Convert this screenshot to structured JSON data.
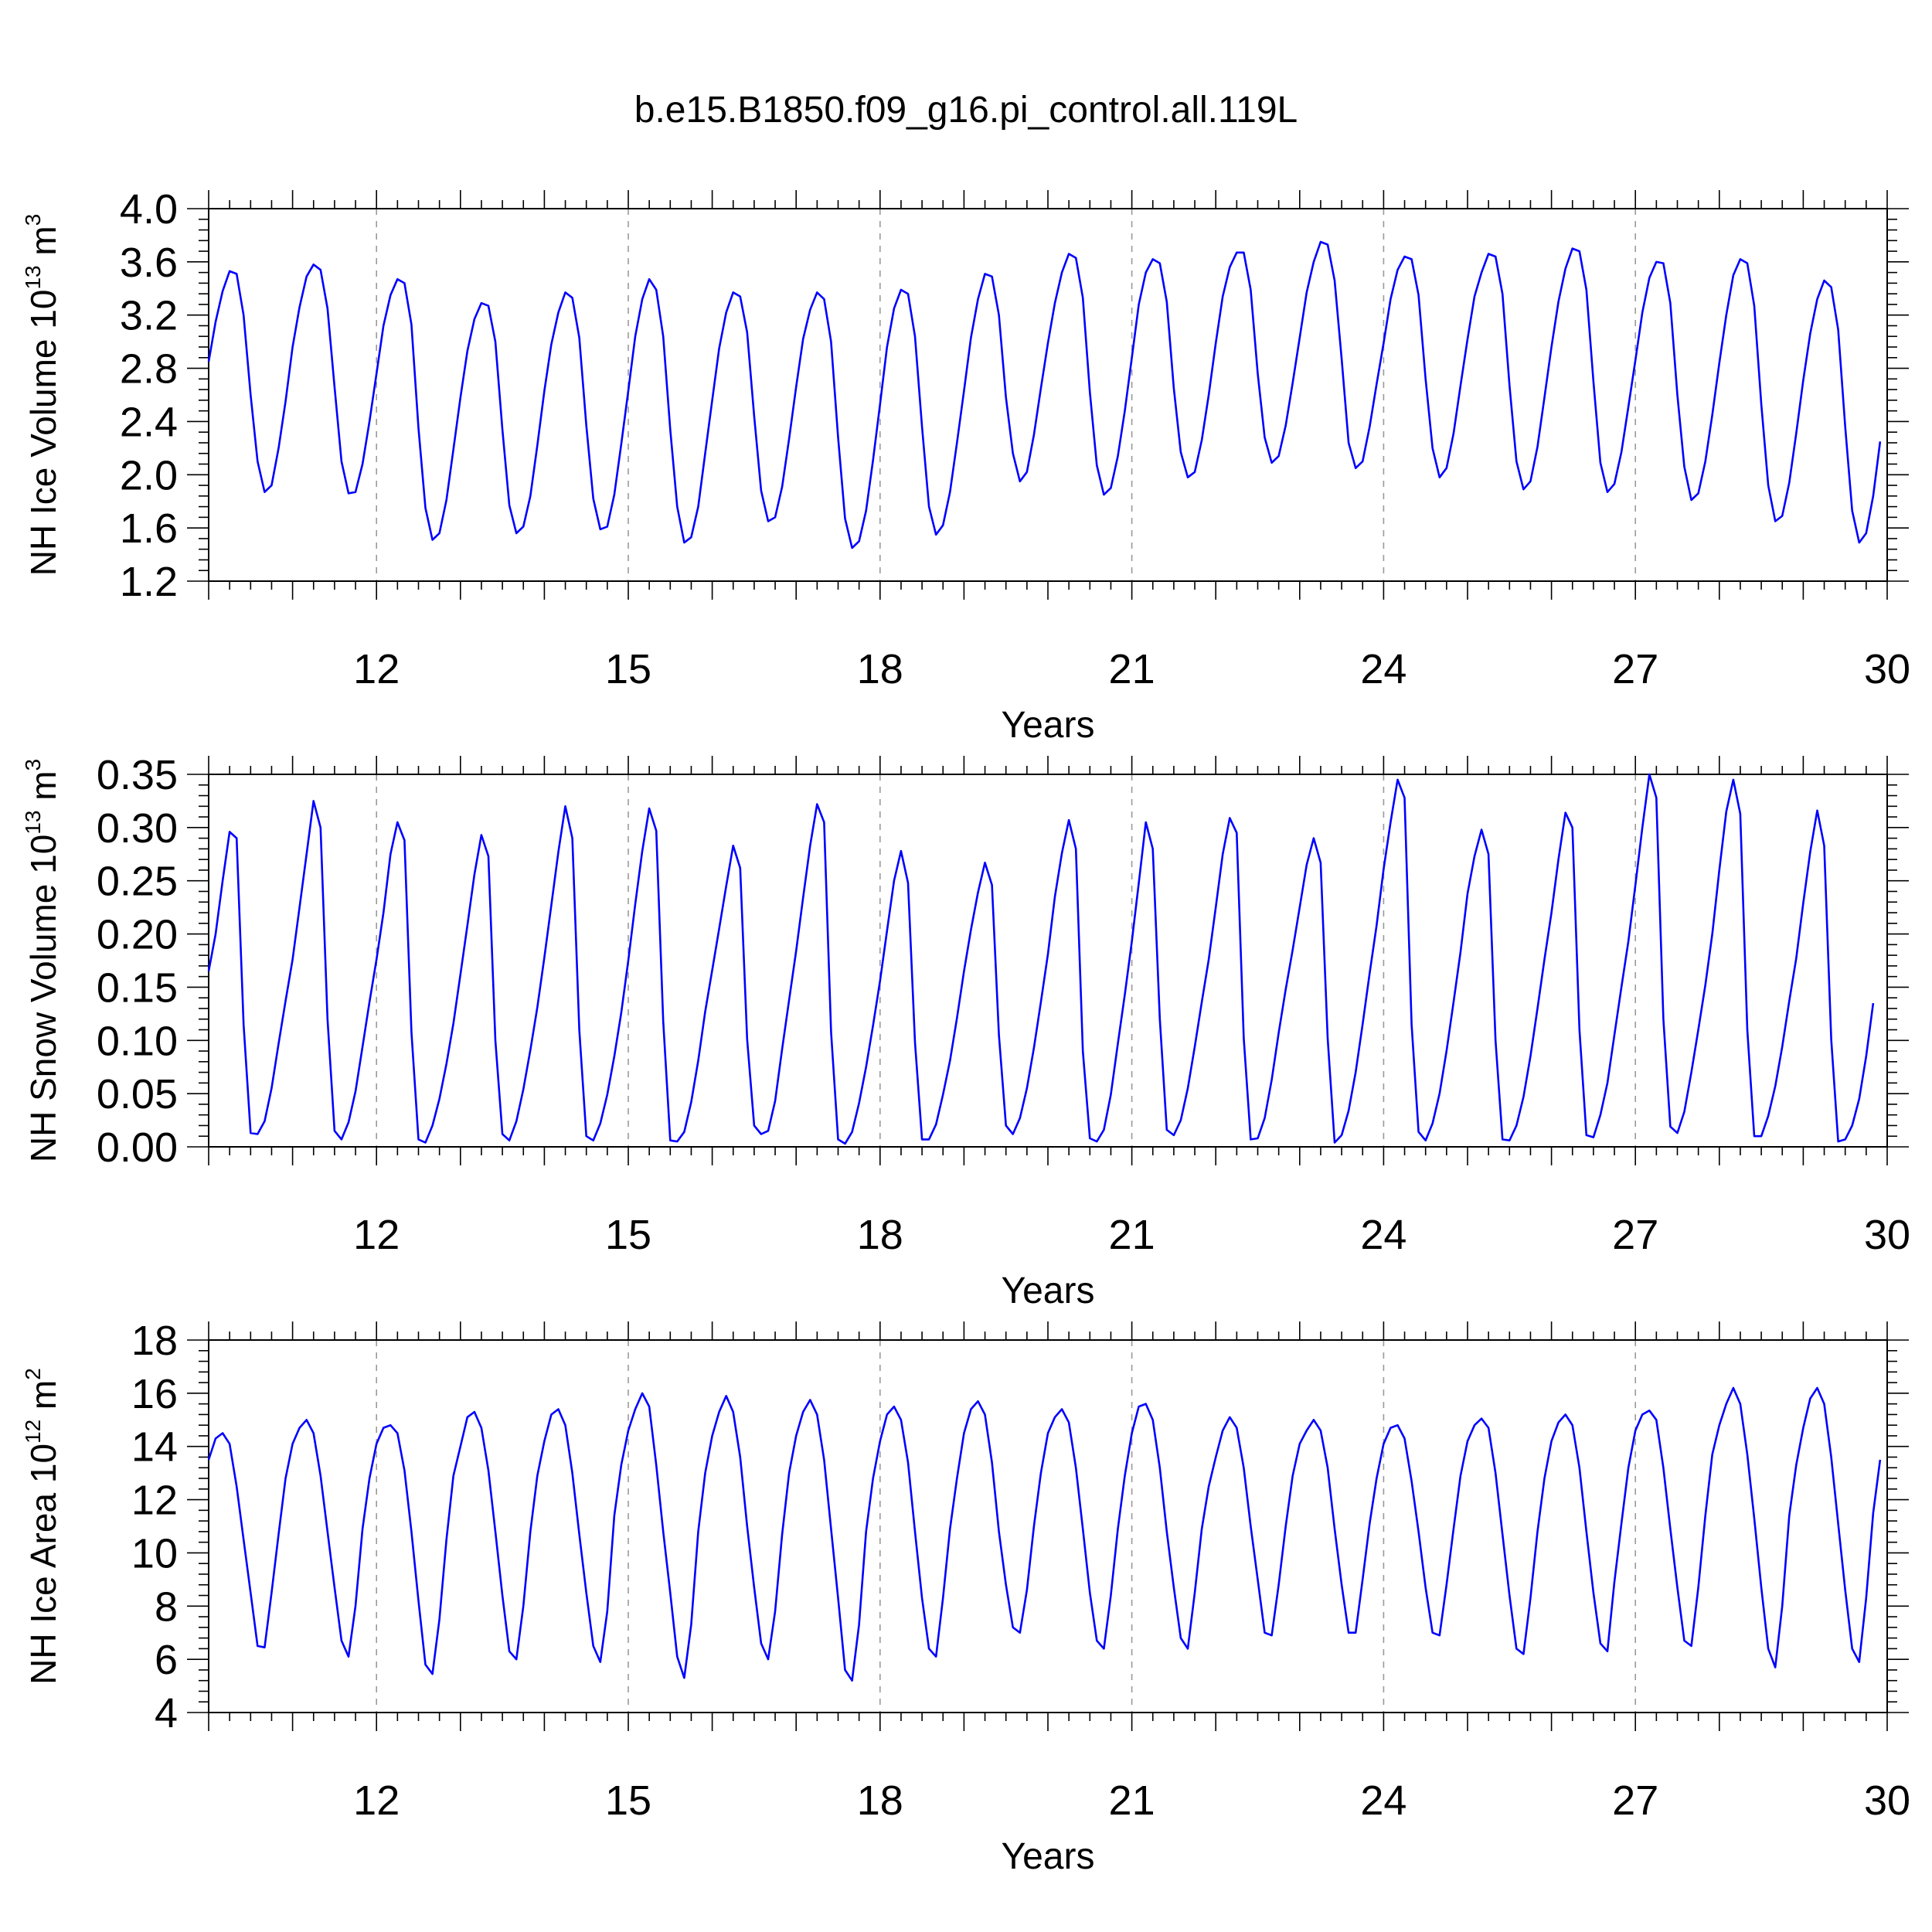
{
  "figure": {
    "title": "b.e15.B1850.f09_g16.pi_control.all.119L"
  },
  "colors": {
    "series": "#0000ff",
    "grid": "#9a9a9a",
    "axis": "#000000"
  },
  "chart_data": [
    {
      "type": "line",
      "title": "",
      "xlabel": "Years",
      "ylabel": "NH Ice Volume 10",
      "ylabel_sup": "13",
      "ylabel_unit": " m",
      "ylabel_unit_sup": "3",
      "xlim": [
        10,
        30
      ],
      "ylim": [
        1.2,
        4.0
      ],
      "xticks": [
        12,
        15,
        18,
        21,
        24,
        27,
        30
      ],
      "xtick_labels": [
        "12",
        "15",
        "18",
        "21",
        "24",
        "27",
        "30"
      ],
      "yticks": [
        1.2,
        1.6,
        2.0,
        2.4,
        2.8,
        3.2,
        3.6,
        4.0
      ],
      "ytick_labels": [
        "1.2",
        "1.6",
        "2.0",
        "2.4",
        "2.8",
        "3.2",
        "3.6",
        "4.0"
      ],
      "grid": "vertical dashed at labeled years",
      "series": [
        {
          "name": "",
          "color": "#0000ff",
          "x_start": 10.0,
          "x_step": 0.08333333,
          "values": [
            2.85,
            3.15,
            3.38,
            3.53,
            3.51,
            3.2,
            2.6,
            2.1,
            1.87,
            1.92,
            2.2,
            2.55,
            2.96,
            3.26,
            3.49,
            3.58,
            3.54,
            3.25,
            2.66,
            2.1,
            1.86,
            1.87,
            2.08,
            2.4,
            2.76,
            3.12,
            3.35,
            3.47,
            3.44,
            3.13,
            2.35,
            1.75,
            1.51,
            1.56,
            1.81,
            2.19,
            2.58,
            2.93,
            3.17,
            3.29,
            3.27,
            3.0,
            2.34,
            1.77,
            1.56,
            1.61,
            1.84,
            2.22,
            2.63,
            2.98,
            3.22,
            3.37,
            3.33,
            3.03,
            2.37,
            1.82,
            1.59,
            1.61,
            1.85,
            2.23,
            2.63,
            3.04,
            3.32,
            3.47,
            3.39,
            3.04,
            2.34,
            1.76,
            1.49,
            1.53,
            1.76,
            2.16,
            2.56,
            2.95,
            3.22,
            3.37,
            3.34,
            3.07,
            2.44,
            1.88,
            1.65,
            1.68,
            1.91,
            2.27,
            2.66,
            3.02,
            3.24,
            3.37,
            3.32,
            3.0,
            2.28,
            1.67,
            1.45,
            1.5,
            1.73,
            2.11,
            2.53,
            2.96,
            3.25,
            3.39,
            3.36,
            3.04,
            2.36,
            1.76,
            1.55,
            1.62,
            1.87,
            2.24,
            2.63,
            3.03,
            3.32,
            3.51,
            3.49,
            3.2,
            2.58,
            2.16,
            1.95,
            2.02,
            2.3,
            2.65,
            2.99,
            3.29,
            3.52,
            3.66,
            3.63,
            3.33,
            2.62,
            2.07,
            1.85,
            1.9,
            2.14,
            2.48,
            2.88,
            3.28,
            3.52,
            3.62,
            3.59,
            3.3,
            2.65,
            2.17,
            1.98,
            2.02,
            2.26,
            2.6,
            2.99,
            3.34,
            3.56,
            3.67,
            3.67,
            3.39,
            2.76,
            2.28,
            2.09,
            2.14,
            2.37,
            2.69,
            3.03,
            3.37,
            3.6,
            3.75,
            3.73,
            3.46,
            2.87,
            2.24,
            2.05,
            2.1,
            2.36,
            2.68,
            2.99,
            3.32,
            3.54,
            3.64,
            3.62,
            3.35,
            2.72,
            2.2,
            1.98,
            2.05,
            2.31,
            2.67,
            3.02,
            3.34,
            3.52,
            3.66,
            3.64,
            3.36,
            2.67,
            2.1,
            1.89,
            1.95,
            2.21,
            2.58,
            2.96,
            3.3,
            3.55,
            3.7,
            3.68,
            3.39,
            2.7,
            2.09,
            1.87,
            1.93,
            2.17,
            2.51,
            2.86,
            3.22,
            3.48,
            3.6,
            3.59,
            3.29,
            2.6,
            2.06,
            1.81,
            1.86,
            2.1,
            2.45,
            2.84,
            3.2,
            3.5,
            3.62,
            3.59,
            3.27,
            2.53,
            1.92,
            1.65,
            1.69,
            1.94,
            2.31,
            2.71,
            3.06,
            3.32,
            3.46,
            3.41,
            3.09,
            2.36,
            1.73,
            1.49,
            1.56,
            1.84,
            2.25
          ]
        }
      ]
    },
    {
      "type": "line",
      "title": "",
      "xlabel": "Years",
      "ylabel": "NH Snow Volume 10",
      "ylabel_sup": "13",
      "ylabel_unit": " m",
      "ylabel_unit_sup": "3",
      "xlim": [
        10,
        30
      ],
      "ylim": [
        0.0,
        0.35
      ],
      "xticks": [
        12,
        15,
        18,
        21,
        24,
        27,
        30
      ],
      "xtick_labels": [
        "12",
        "15",
        "18",
        "21",
        "24",
        "27",
        "30"
      ],
      "yticks": [
        0.0,
        0.05,
        0.1,
        0.15,
        0.2,
        0.25,
        0.3,
        0.35
      ],
      "ytick_labels": [
        "0.00",
        "0.05",
        "0.10",
        "0.15",
        "0.20",
        "0.25",
        "0.30",
        "0.35"
      ],
      "grid": "vertical dashed at labeled years",
      "series": [
        {
          "name": "",
          "color": "#0000ff",
          "x_start": 10.0,
          "x_step": 0.08333333,
          "values": [
            0.165,
            0.2,
            0.25,
            0.296,
            0.29,
            0.115,
            0.013,
            0.012,
            0.024,
            0.055,
            0.097,
            0.137,
            0.176,
            0.225,
            0.275,
            0.325,
            0.3,
            0.12,
            0.015,
            0.007,
            0.023,
            0.052,
            0.094,
            0.136,
            0.176,
            0.22,
            0.275,
            0.305,
            0.288,
            0.108,
            0.007,
            0.004,
            0.02,
            0.045,
            0.078,
            0.116,
            0.162,
            0.208,
            0.256,
            0.293,
            0.273,
            0.1,
            0.012,
            0.006,
            0.024,
            0.054,
            0.091,
            0.131,
            0.178,
            0.227,
            0.277,
            0.32,
            0.29,
            0.11,
            0.01,
            0.006,
            0.022,
            0.049,
            0.085,
            0.126,
            0.175,
            0.228,
            0.278,
            0.318,
            0.297,
            0.118,
            0.006,
            0.005,
            0.014,
            0.042,
            0.081,
            0.127,
            0.166,
            0.205,
            0.245,
            0.283,
            0.262,
            0.101,
            0.02,
            0.012,
            0.015,
            0.043,
            0.092,
            0.138,
            0.184,
            0.234,
            0.283,
            0.322,
            0.305,
            0.108,
            0.007,
            0.003,
            0.014,
            0.041,
            0.075,
            0.114,
            0.156,
            0.203,
            0.25,
            0.278,
            0.248,
            0.098,
            0.007,
            0.007,
            0.021,
            0.049,
            0.081,
            0.121,
            0.165,
            0.204,
            0.239,
            0.267,
            0.246,
            0.105,
            0.02,
            0.012,
            0.027,
            0.055,
            0.093,
            0.136,
            0.181,
            0.235,
            0.276,
            0.307,
            0.28,
            0.09,
            0.008,
            0.005,
            0.016,
            0.049,
            0.097,
            0.143,
            0.193,
            0.248,
            0.305,
            0.28,
            0.12,
            0.016,
            0.011,
            0.025,
            0.055,
            0.094,
            0.136,
            0.176,
            0.225,
            0.275,
            0.309,
            0.295,
            0.102,
            0.007,
            0.008,
            0.027,
            0.063,
            0.107,
            0.148,
            0.185,
            0.225,
            0.265,
            0.29,
            0.267,
            0.102,
            0.004,
            0.011,
            0.034,
            0.07,
            0.115,
            0.163,
            0.208,
            0.261,
            0.305,
            0.345,
            0.328,
            0.115,
            0.014,
            0.006,
            0.022,
            0.05,
            0.09,
            0.136,
            0.183,
            0.238,
            0.273,
            0.298,
            0.275,
            0.1,
            0.007,
            0.006,
            0.02,
            0.047,
            0.085,
            0.13,
            0.176,
            0.22,
            0.27,
            0.314,
            0.3,
            0.11,
            0.011,
            0.009,
            0.03,
            0.06,
            0.105,
            0.15,
            0.193,
            0.246,
            0.3,
            0.35,
            0.328,
            0.12,
            0.019,
            0.013,
            0.033,
            0.07,
            0.11,
            0.152,
            0.2,
            0.26,
            0.315,
            0.345,
            0.313,
            0.11,
            0.01,
            0.01,
            0.029,
            0.057,
            0.094,
            0.137,
            0.177,
            0.229,
            0.277,
            0.316,
            0.283,
            0.101,
            0.005,
            0.007,
            0.02,
            0.045,
            0.085,
            0.135
          ]
        }
      ]
    },
    {
      "type": "line",
      "title": "",
      "xlabel": "Years",
      "ylabel": "NH Ice Area 10",
      "ylabel_sup": "12",
      "ylabel_unit": " m",
      "ylabel_unit_sup": "2",
      "xlim": [
        10,
        30
      ],
      "ylim": [
        4,
        18
      ],
      "xticks": [
        12,
        15,
        18,
        21,
        24,
        27,
        30
      ],
      "xtick_labels": [
        "12",
        "15",
        "18",
        "21",
        "24",
        "27",
        "30"
      ],
      "yticks": [
        4,
        6,
        8,
        10,
        12,
        14,
        16,
        18
      ],
      "ytick_labels": [
        "4",
        "6",
        "8",
        "10",
        "12",
        "14",
        "16",
        "18"
      ],
      "grid": "vertical dashed at labeled years",
      "series": [
        {
          "name": "",
          "color": "#0000ff",
          "x_start": 10.0,
          "x_step": 0.08333333,
          "values": [
            13.5,
            14.3,
            14.5,
            14.1,
            12.5,
            10.5,
            8.5,
            6.5,
            6.45,
            8.5,
            10.7,
            12.8,
            14.1,
            14.7,
            15.0,
            14.5,
            12.9,
            10.8,
            8.7,
            6.7,
            6.1,
            8.0,
            10.9,
            12.8,
            14.1,
            14.7,
            14.8,
            14.5,
            13.1,
            10.8,
            8.2,
            5.8,
            5.45,
            7.5,
            10.5,
            12.9,
            14.0,
            15.1,
            15.3,
            14.7,
            13.1,
            10.8,
            8.4,
            6.3,
            6.0,
            8.0,
            10.8,
            12.9,
            14.2,
            15.2,
            15.4,
            14.8,
            13.0,
            10.7,
            8.5,
            6.5,
            5.9,
            7.8,
            11.4,
            13.3,
            14.6,
            15.4,
            16.0,
            15.5,
            13.3,
            10.8,
            8.5,
            6.1,
            5.3,
            7.3,
            10.8,
            13.0,
            14.4,
            15.3,
            15.9,
            15.3,
            13.6,
            11.0,
            8.7,
            6.6,
            6.0,
            7.8,
            10.7,
            13.0,
            14.4,
            15.3,
            15.75,
            15.2,
            13.5,
            10.9,
            8.3,
            5.6,
            5.2,
            7.3,
            10.8,
            12.8,
            14.2,
            15.2,
            15.5,
            15.0,
            13.4,
            10.8,
            8.3,
            6.4,
            6.1,
            8.3,
            10.9,
            12.8,
            14.5,
            15.4,
            15.7,
            15.2,
            13.4,
            10.8,
            8.8,
            7.2,
            7.0,
            8.6,
            11.0,
            13.0,
            14.5,
            15.1,
            15.4,
            14.9,
            13.2,
            10.9,
            8.5,
            6.7,
            6.4,
            8.4,
            10.9,
            12.9,
            14.5,
            15.5,
            15.6,
            15.0,
            13.2,
            10.8,
            8.7,
            6.8,
            6.4,
            8.5,
            10.9,
            12.5,
            13.6,
            14.6,
            15.1,
            14.7,
            13.2,
            11.0,
            9.0,
            7.0,
            6.9,
            8.8,
            11.0,
            12.9,
            14.1,
            14.6,
            15.0,
            14.6,
            13.2,
            10.9,
            8.8,
            7.0,
            7.0,
            9.0,
            11.1,
            12.8,
            14.1,
            14.7,
            14.8,
            14.3,
            12.7,
            10.8,
            8.7,
            7.0,
            6.9,
            8.8,
            10.9,
            12.9,
            14.2,
            14.8,
            15.05,
            14.7,
            13.0,
            10.7,
            8.4,
            6.4,
            6.2,
            8.3,
            10.8,
            12.8,
            14.2,
            14.9,
            15.2,
            14.8,
            13.2,
            10.8,
            8.5,
            6.6,
            6.3,
            8.9,
            11.1,
            13.2,
            14.6,
            15.2,
            15.35,
            15.0,
            13.2,
            10.9,
            8.7,
            6.7,
            6.5,
            8.7,
            11.4,
            13.7,
            14.8,
            15.6,
            16.2,
            15.6,
            13.7,
            11.3,
            8.7,
            6.4,
            5.7,
            8.0,
            11.4,
            13.3,
            14.7,
            15.8,
            16.2,
            15.6,
            13.6,
            11.1,
            8.6,
            6.4,
            5.9,
            8.3,
            11.5,
            13.5
          ]
        }
      ]
    }
  ]
}
